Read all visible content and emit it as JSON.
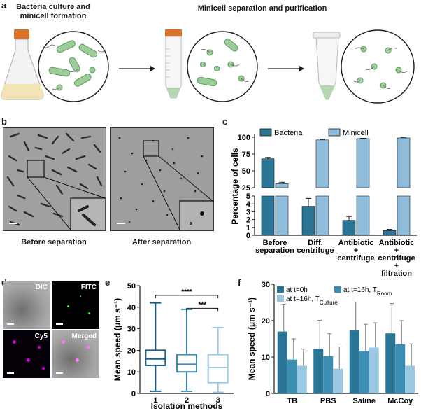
{
  "panel_a": {
    "letter": "a",
    "left_title": [
      "Bacteria culture and",
      "minicell formation"
    ],
    "right_title": "Minicell separation and purification"
  },
  "panel_b": {
    "letter": "b",
    "caption_left": "Before separation",
    "caption_right": "After separation"
  },
  "panel_d": {
    "letter": "d",
    "labels": [
      "DIC",
      "FITC",
      "Cy5",
      "Merged"
    ]
  },
  "colors": {
    "bacteria": "#2a7596",
    "minicell": "#8fbddb",
    "t0": "#2a7596",
    "t16_room": "#3d8eb3",
    "t16_culture": "#9ac8e3",
    "box1": "#1f5d80",
    "box2": "#3d8eb3",
    "box3": "#9ac8e3"
  },
  "chart_data": [
    {
      "panel": "c",
      "type": "bar",
      "ylabel": "Percentage of cells",
      "legend": [
        "Bacteria",
        "Minicell"
      ],
      "categories": [
        [
          "Before",
          "separation"
        ],
        [
          "Diff.",
          "centrifuge"
        ],
        [
          "Antibiotic",
          "+",
          "centrifuge"
        ],
        [
          "Antibiotic",
          "+",
          "centrifuge",
          "+",
          "filtration"
        ]
      ],
      "series": [
        {
          "name": "Bacteria",
          "values": [
            68,
            3.7,
            1.9,
            0.6
          ],
          "err": [
            2,
            1.0,
            0.5,
            0.15
          ]
        },
        {
          "name": "Minicell",
          "values": [
            31,
            96,
            98,
            99
          ],
          "err": [
            2,
            1,
            0.5,
            0.3
          ]
        }
      ],
      "broken_axis": {
        "lower": [
          0,
          5
        ],
        "upper": [
          25,
          100
        ]
      },
      "yticks_upper": [
        25,
        50,
        75,
        100
      ],
      "yticks_lower": [
        0,
        1,
        2,
        3,
        4,
        5
      ]
    },
    {
      "panel": "e",
      "type": "box",
      "xlabel": "Isolation methods",
      "ylabel": "Mean speed (μm s⁻¹)",
      "categories": [
        "1",
        "2",
        "3"
      ],
      "boxes": [
        {
          "min": 1,
          "q1": 13,
          "median": 16,
          "q3": 20,
          "max": 42
        },
        {
          "min": 1,
          "q1": 10,
          "median": 13.5,
          "q3": 18,
          "max": 39
        },
        {
          "min": 0.5,
          "q1": 5,
          "median": 12,
          "q3": 18,
          "max": 30.5
        }
      ],
      "ylim": [
        0,
        50
      ],
      "yticks": [
        0,
        10,
        20,
        30,
        40,
        50
      ],
      "significance": [
        {
          "from": "1",
          "to": "3",
          "label": "****"
        },
        {
          "from": "2",
          "to": "3",
          "label": "***"
        }
      ]
    },
    {
      "panel": "f",
      "type": "bar",
      "ylabel": "Mean speed (μm s⁻¹)",
      "categories": [
        "TB",
        "PBS",
        "Saline",
        "McCoy"
      ],
      "legend": [
        "at t=0h",
        "at t=16h, T_Room",
        "at t=16h, T_Culture"
      ],
      "series": [
        {
          "name": "at t=0h",
          "values": [
            17,
            12.3,
            17.3,
            16.5
          ],
          "err": [
            7.5,
            7.8,
            7.8,
            8.2
          ]
        },
        {
          "name": "at t=16h, T_Room",
          "values": [
            9.3,
            10.2,
            11.7,
            13.5
          ],
          "err": [
            5.7,
            6.2,
            7.3,
            6.5
          ]
        },
        {
          "name": "at t=16h, T_Culture",
          "values": [
            7.6,
            6.8,
            12.6,
            7.6
          ],
          "err": [
            4.6,
            6.0,
            6.8,
            6.0
          ]
        }
      ],
      "ylim": [
        0,
        30
      ],
      "yticks": [
        0,
        10,
        20,
        30
      ]
    }
  ]
}
